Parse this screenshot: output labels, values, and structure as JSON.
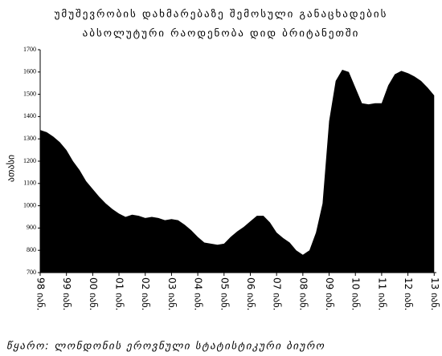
{
  "chart_data": {
    "type": "area",
    "title": [
      "უმუშევრობის დახმარებაზე შემოსული განაცხადების",
      "აბსოლუტური რაოდენობა დიდ ბრიტანეთში"
    ],
    "y_label": "ათასი",
    "source": "წყარო: ლონდონის ეროვნული სტატისტიკური ბიურო",
    "color": "#000000",
    "x": [
      "1998-01",
      "1998-04",
      "1998-07",
      "1998-10",
      "1999-01",
      "1999-04",
      "1999-07",
      "1999-10",
      "2000-01",
      "2000-04",
      "2000-07",
      "2000-10",
      "2001-01",
      "2001-04",
      "2001-07",
      "2001-10",
      "2002-01",
      "2002-04",
      "2002-07",
      "2002-10",
      "2003-01",
      "2003-04",
      "2003-07",
      "2003-10",
      "2004-01",
      "2004-04",
      "2004-07",
      "2004-10",
      "2005-01",
      "2005-04",
      "2005-07",
      "2005-10",
      "2006-01",
      "2006-04",
      "2006-07",
      "2006-10",
      "2007-01",
      "2007-04",
      "2007-07",
      "2007-10",
      "2008-01",
      "2008-04",
      "2008-07",
      "2008-10",
      "2009-01",
      "2009-04",
      "2009-07",
      "2009-10",
      "2010-01",
      "2010-04",
      "2010-07",
      "2010-10",
      "2011-01",
      "2011-04",
      "2011-07",
      "2011-10",
      "2012-01",
      "2012-04",
      "2012-07",
      "2012-10",
      "2013-01"
    ],
    "values": [
      1340,
      1330,
      1310,
      1285,
      1250,
      1200,
      1160,
      1110,
      1075,
      1040,
      1010,
      985,
      965,
      950,
      960,
      955,
      945,
      950,
      945,
      935,
      940,
      935,
      915,
      890,
      860,
      835,
      830,
      825,
      830,
      860,
      885,
      905,
      930,
      955,
      955,
      925,
      880,
      855,
      835,
      800,
      780,
      800,
      880,
      1010,
      1380,
      1560,
      1610,
      1600,
      1530,
      1460,
      1455,
      1460,
      1460,
      1540,
      1590,
      1605,
      1595,
      1580,
      1560,
      1530,
      1495
    ],
    "ylim": [
      700,
      1700
    ],
    "yticks": [
      700,
      800,
      900,
      1000,
      1100,
      1200,
      1300,
      1400,
      1500,
      1600,
      1700
    ],
    "xlim": [
      "1998-01",
      "2013-02"
    ],
    "xticks": [
      {
        "value": "1998-01",
        "label": "98 იან."
      },
      {
        "value": "1999-01",
        "label": "99 იან."
      },
      {
        "value": "2000-01",
        "label": "00 იან."
      },
      {
        "value": "2001-01",
        "label": "01 იან."
      },
      {
        "value": "2002-01",
        "label": "02 იან."
      },
      {
        "value": "2003-01",
        "label": "03 იან."
      },
      {
        "value": "2004-01",
        "label": "04 იან."
      },
      {
        "value": "2005-01",
        "label": "05 იან."
      },
      {
        "value": "2006-01",
        "label": "06 იან."
      },
      {
        "value": "2007-01",
        "label": "07 იან."
      },
      {
        "value": "2008-01",
        "label": "08 იან."
      },
      {
        "value": "2009-01",
        "label": "09 იან."
      },
      {
        "value": "2010-01",
        "label": "10 იან."
      },
      {
        "value": "2011-01",
        "label": "11 იან."
      },
      {
        "value": "2012-01",
        "label": "12 იან."
      },
      {
        "value": "2013-01",
        "label": "13 იან."
      }
    ]
  }
}
